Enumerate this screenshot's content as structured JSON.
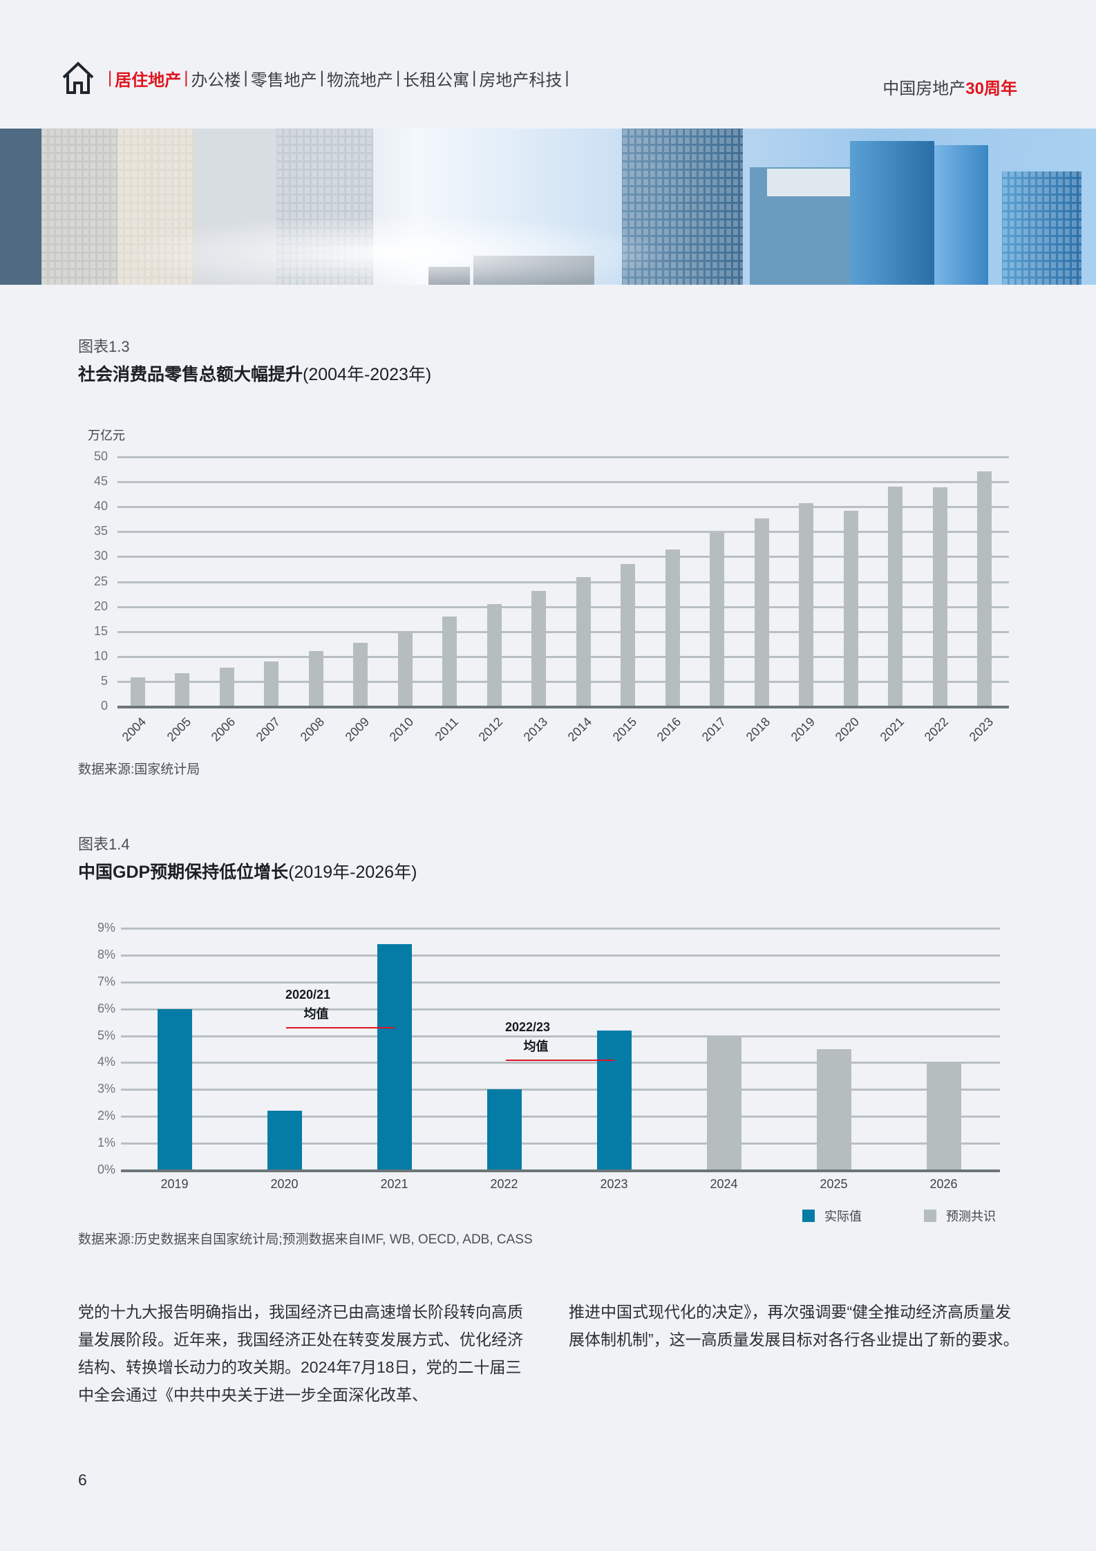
{
  "header": {
    "nav_items": [
      {
        "label": "居住地产",
        "active": true
      },
      {
        "label": "办公楼",
        "active": false
      },
      {
        "label": "零售地产",
        "active": false
      },
      {
        "label": "物流地产",
        "active": false
      },
      {
        "label": "长租公寓",
        "active": false
      },
      {
        "label": "房地产科技",
        "active": false
      }
    ],
    "brand_prefix": "中国房地产",
    "brand_highlight": "30周年",
    "home_icon": "house-icon"
  },
  "banner": {
    "description": "city-skyline-photo"
  },
  "figure1": {
    "label": "图表1.3",
    "title_bold": "社会消费品零售总额大幅提升",
    "title_sub": "(2004年-2023年)",
    "source": "数据来源:国家统计局"
  },
  "figure2": {
    "label": "图表1.4",
    "title_bold": "中国GDP预期保持低位增长",
    "title_sub": "(2019年-2026年)",
    "source": "数据来源:历史数据来自国家统计局;预测数据来自IMF, WB, OECD, ADB, CASS",
    "annotations": [
      {
        "line1": "2020/21",
        "line2": "均值",
        "value": 5.3
      },
      {
        "line1": "2022/23",
        "line2": "均值",
        "value": 4.1
      }
    ],
    "legend": [
      {
        "label": "实际值",
        "color": "#047ca6"
      },
      {
        "label": "预测共识",
        "color": "#b6bdbf"
      }
    ]
  },
  "chart_data": [
    {
      "type": "bar",
      "title": "社会消费品零售总额大幅提升(2004年-2023年)",
      "xlabel": "",
      "ylabel": "万亿元",
      "ylim": [
        0,
        50
      ],
      "yticks": [
        0,
        5,
        10,
        15,
        20,
        25,
        30,
        35,
        40,
        45,
        50
      ],
      "grid": true,
      "categories": [
        "2004",
        "2005",
        "2006",
        "2007",
        "2008",
        "2009",
        "2010",
        "2011",
        "2012",
        "2013",
        "2014",
        "2015",
        "2016",
        "2017",
        "2018",
        "2019",
        "2020",
        "2021",
        "2022",
        "2023"
      ],
      "values": [
        5.8,
        6.6,
        7.7,
        9.0,
        11.1,
        12.7,
        15.1,
        18.0,
        20.5,
        23.1,
        25.9,
        28.6,
        31.5,
        34.7,
        37.7,
        40.7,
        39.2,
        44.0,
        43.9,
        47.1
      ],
      "color": "#b6bdbf"
    },
    {
      "type": "bar",
      "title": "中国GDP预期保持低位增长(2019年-2026年)",
      "xlabel": "",
      "ylabel": "",
      "ylim": [
        0,
        9
      ],
      "yticks": [
        "0%",
        "1%",
        "2%",
        "3%",
        "4%",
        "5%",
        "6%",
        "7%",
        "8%",
        "9%"
      ],
      "grid": true,
      "legend_position": "bottom-right",
      "categories": [
        "2019",
        "2020",
        "2021",
        "2022",
        "2023",
        "2024",
        "2025",
        "2026"
      ],
      "series": [
        {
          "name": "实际值",
          "values": [
            6.0,
            2.2,
            8.4,
            3.0,
            5.2,
            null,
            null,
            null
          ],
          "color": "#047ca6"
        },
        {
          "name": "预测共识",
          "values": [
            null,
            null,
            null,
            null,
            null,
            5.0,
            4.5,
            4.0
          ],
          "color": "#b6bdbf"
        }
      ],
      "annotations": [
        {
          "text": "2020/21 均值",
          "value": 5.3,
          "span": [
            "2020",
            "2021"
          ]
        },
        {
          "text": "2022/23 均值",
          "value": 4.1,
          "span": [
            "2022",
            "2023"
          ]
        }
      ]
    }
  ],
  "body": {
    "col1": "党的十九大报告明确指出，我国经济已由高速增长阶段转向高质量发展阶段。近年来，我国经济正处在转变发展方式、优化经济结构、转换增长动力的攻关期。2024年7月18日，党的二十届三中全会通过《中共中央关于进一步全面深化改革、",
    "col2": "推进中国式现代化的决定》，再次强调要“健全推动经济高质量发展体制机制”，这一高质量发展目标对各行各业提出了新的要求。"
  },
  "footer": {
    "page_number": "6"
  }
}
